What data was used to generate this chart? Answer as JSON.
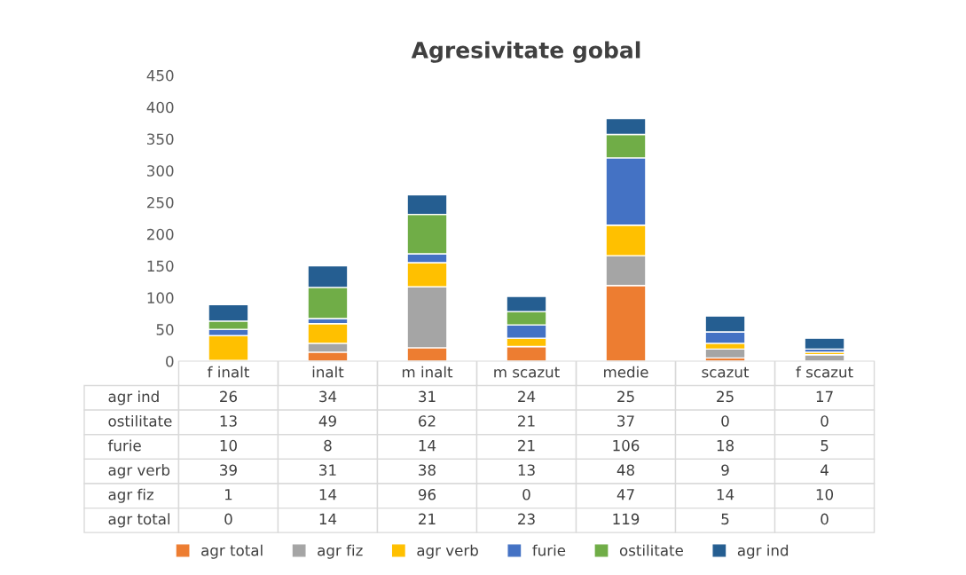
{
  "chart_data": {
    "type": "bar",
    "title": "Agresivitate gobal",
    "stacked": true,
    "categories": [
      "f inalt",
      "inalt",
      "m inalt",
      "m scazut",
      "medie",
      "scazut",
      "f scazut"
    ],
    "series": [
      {
        "name": "agr total",
        "color": "#ed7d31",
        "values": [
          0,
          14,
          21,
          23,
          119,
          5,
          0
        ]
      },
      {
        "name": "agr fiz",
        "color": "#a5a5a5",
        "values": [
          1,
          14,
          96,
          0,
          47,
          14,
          10
        ]
      },
      {
        "name": "agr verb",
        "color": "#ffc000",
        "values": [
          39,
          31,
          38,
          13,
          48,
          9,
          4
        ]
      },
      {
        "name": "furie",
        "color": "#4472c4",
        "values": [
          10,
          8,
          14,
          21,
          106,
          18,
          5
        ]
      },
      {
        "name": "ostilitate",
        "color": "#70ad47",
        "values": [
          13,
          49,
          62,
          21,
          37,
          0,
          0
        ]
      },
      {
        "name": "agr ind",
        "color": "#255e91",
        "values": [
          26,
          34,
          31,
          24,
          25,
          25,
          17
        ]
      }
    ],
    "ylim": [
      0,
      450
    ],
    "yticks": [
      0,
      50,
      100,
      150,
      200,
      250,
      300,
      350,
      400,
      450
    ],
    "data_labels": true,
    "legend": "bottom",
    "grid": false
  }
}
